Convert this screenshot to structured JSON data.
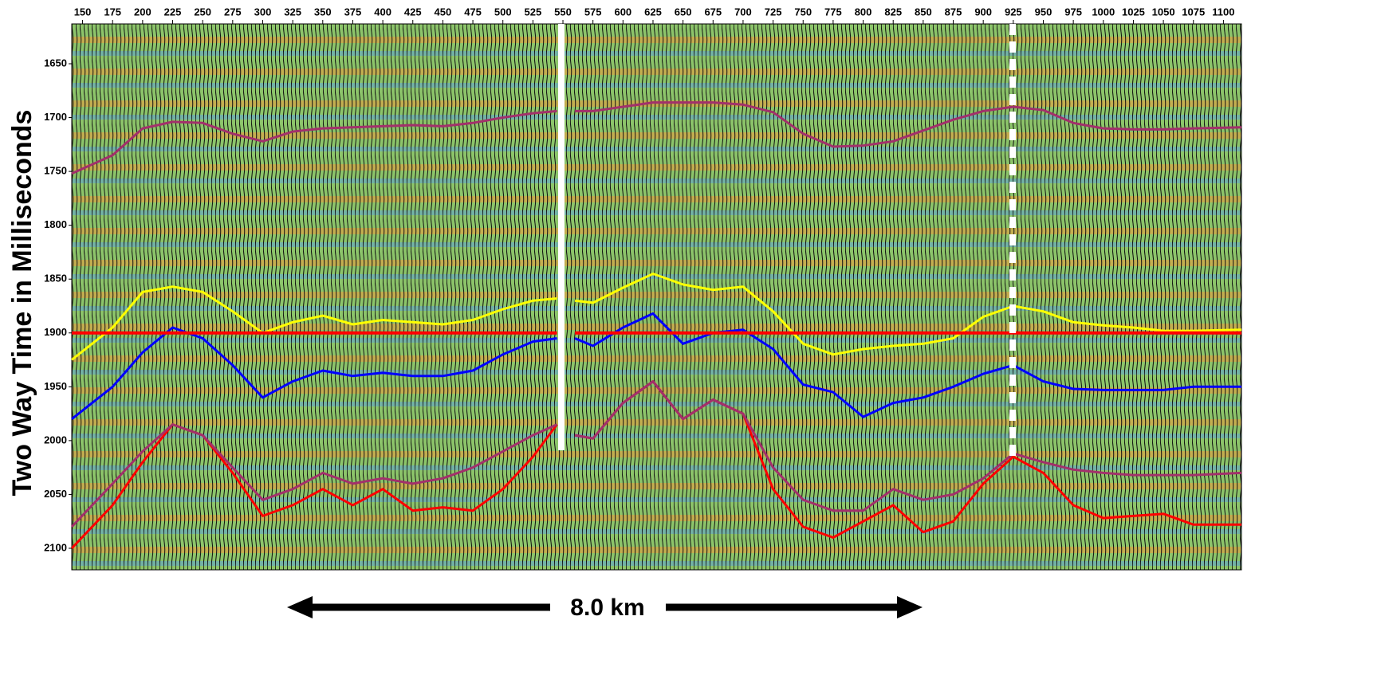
{
  "chart_data": {
    "type": "line",
    "y_label": "Two Way Time in Milliseconds",
    "annotation": "8.0 km",
    "y_inverted": true,
    "xlim": [
      141,
      1115
    ],
    "ylim": [
      1613,
      2120
    ],
    "xticks": [
      150,
      175,
      200,
      225,
      250,
      275,
      300,
      325,
      350,
      375,
      400,
      425,
      450,
      475,
      500,
      525,
      550,
      575,
      600,
      625,
      650,
      675,
      700,
      725,
      750,
      775,
      800,
      825,
      850,
      875,
      900,
      925,
      950,
      975,
      1000,
      1025,
      1050,
      1075,
      1100
    ],
    "yticks": [
      1650,
      1700,
      1750,
      1800,
      1850,
      1900,
      1950,
      2000,
      2050,
      2100
    ],
    "x": [
      141,
      175,
      200,
      225,
      250,
      275,
      300,
      325,
      350,
      375,
      400,
      425,
      450,
      475,
      500,
      525,
      545,
      550,
      560,
      575,
      600,
      625,
      650,
      675,
      700,
      725,
      750,
      775,
      800,
      825,
      850,
      875,
      900,
      925,
      950,
      975,
      1000,
      1025,
      1050,
      1075,
      1115
    ],
    "series": [
      {
        "color": "#a3306b",
        "values": [
          1752,
          1735,
          1710,
          1704,
          1705,
          1715,
          1722,
          1713,
          1710,
          1709,
          1708,
          1707,
          1708,
          1705,
          1700,
          1696,
          1694,
          null,
          1694,
          1694,
          1690,
          1686,
          1686,
          1686,
          1688,
          1695,
          1715,
          1727,
          1726,
          1722,
          1712,
          1702,
          1694,
          1690,
          1693,
          1705,
          1710,
          1711,
          1711,
          1710,
          1709
        ]
      },
      {
        "color": "#ffff00",
        "values": [
          1925,
          1895,
          1862,
          1857,
          1862,
          1880,
          1900,
          1890,
          1884,
          1892,
          1888,
          1890,
          1892,
          1888,
          1878,
          1870,
          1868,
          null,
          1870,
          1872,
          1858,
          1845,
          1855,
          1860,
          1857,
          1880,
          1910,
          1920,
          1915,
          1912,
          1910,
          1905,
          1885,
          1875,
          1880,
          1890,
          1893,
          1895,
          1898,
          1898,
          1897
        ]
      },
      {
        "color": "#0000ff",
        "values": [
          1980,
          1950,
          1918,
          1895,
          1905,
          1930,
          1960,
          1945,
          1935,
          1940,
          1937,
          1940,
          1940,
          1935,
          1920,
          1908,
          1905,
          null,
          1905,
          1912,
          1895,
          1882,
          1910,
          1900,
          1897,
          1915,
          1948,
          1955,
          1978,
          1965,
          1960,
          1950,
          1938,
          1930,
          1945,
          1952,
          1953,
          1953,
          1953,
          1950,
          1950
        ]
      },
      {
        "color": "#ff0000",
        "width": 4,
        "values": [
          1900,
          1900,
          1900,
          1900,
          1900,
          1900,
          1900,
          1900,
          1900,
          1900,
          1900,
          1900,
          1900,
          1900,
          1900,
          1900,
          1900,
          null,
          1900,
          1900,
          1900,
          1900,
          1900,
          1900,
          1900,
          1900,
          1900,
          1900,
          1900,
          1900,
          1900,
          1900,
          1900,
          1900,
          1900,
          1900,
          1900,
          1900,
          1900,
          1900,
          1900
        ]
      },
      {
        "color": "#ff0000",
        "values": [
          2100,
          2060,
          2020,
          1985,
          1995,
          2030,
          2070,
          2060,
          2045,
          2060,
          2045,
          2065,
          2062,
          2065,
          2045,
          2015,
          1985,
          null,
          1995,
          1998,
          1965,
          1945,
          1980,
          1962,
          1975,
          2045,
          2080,
          2090,
          2075,
          2060,
          2085,
          2075,
          2040,
          2015,
          2030,
          2060,
          2072,
          2070,
          2068,
          2078,
          2078
        ]
      },
      {
        "color": "#a3306b",
        "values": [
          2080,
          2040,
          2010,
          1985,
          1995,
          2025,
          2055,
          2045,
          2030,
          2040,
          2035,
          2040,
          2035,
          2025,
          2010,
          1995,
          1985,
          null,
          1995,
          1998,
          1965,
          1945,
          1980,
          1962,
          1975,
          2025,
          2055,
          2065,
          2065,
          2045,
          2055,
          2050,
          2035,
          2012,
          2020,
          2027,
          2030,
          2032,
          2032,
          2032,
          2030
        ]
      }
    ]
  }
}
